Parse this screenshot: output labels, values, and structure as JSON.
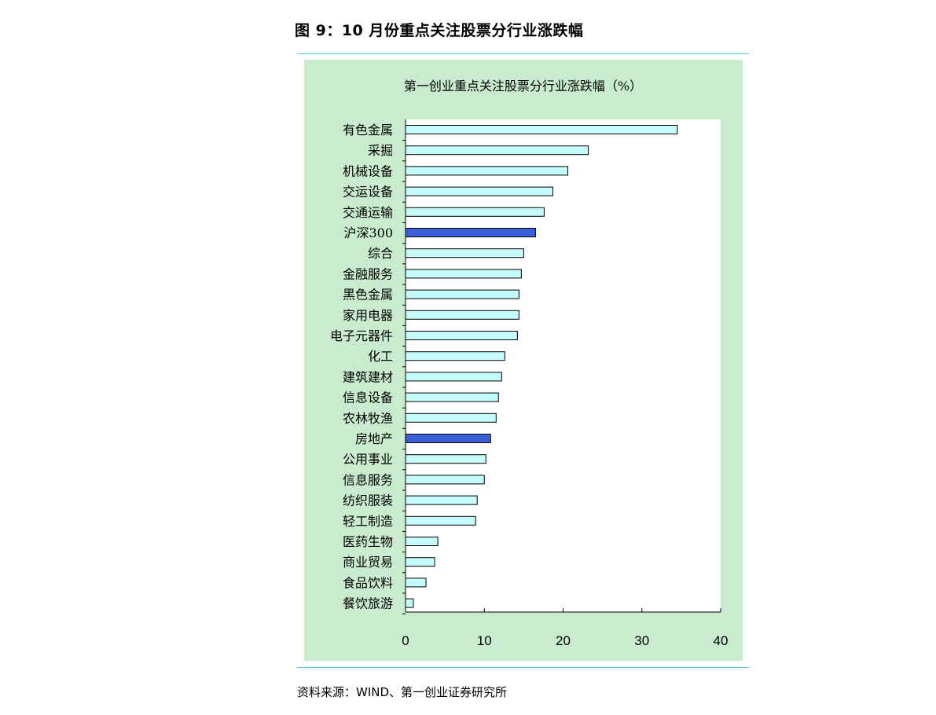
{
  "figure_caption": "图 9：10 月份重点关注股票分行业涨跌幅",
  "source_note": "资料来源：WIND、第一创业证券研究所",
  "colors": {
    "bar_fill": "#c6fbfb",
    "bar_highlight": "#3a5fd9",
    "panel_bg": "#c9ebce",
    "rule": "#5fc0d6"
  },
  "chart_data": {
    "type": "bar",
    "orientation": "horizontal",
    "title": "第一创业重点关注股票分行业涨跌幅（%）",
    "xlabel": "",
    "ylabel": "",
    "xlim": [
      0,
      40
    ],
    "xticks": [
      0,
      10,
      20,
      30,
      40
    ],
    "grid": false,
    "legend": "none",
    "categories": [
      "有色金属",
      "采掘",
      "机械设备",
      "交运设备",
      "交通运输",
      "沪深300",
      "综合",
      "金融服务",
      "黑色金属",
      "家用电器",
      "电子元器件",
      "化工",
      "建筑建材",
      "信息设备",
      "农林牧渔",
      "房地产",
      "公用事业",
      "信息服务",
      "纺织服装",
      "轻工制造",
      "医药生物",
      "商业贸易",
      "食品饮料",
      "餐饮旅游"
    ],
    "values": [
      34.5,
      23.2,
      20.6,
      18.7,
      17.6,
      16.5,
      15.0,
      14.7,
      14.4,
      14.4,
      14.2,
      12.6,
      12.2,
      11.8,
      11.5,
      10.8,
      10.2,
      10.0,
      9.1,
      8.9,
      4.1,
      3.7,
      2.6,
      1.0
    ],
    "highlighted": [
      "沪深300",
      "房地产"
    ]
  }
}
